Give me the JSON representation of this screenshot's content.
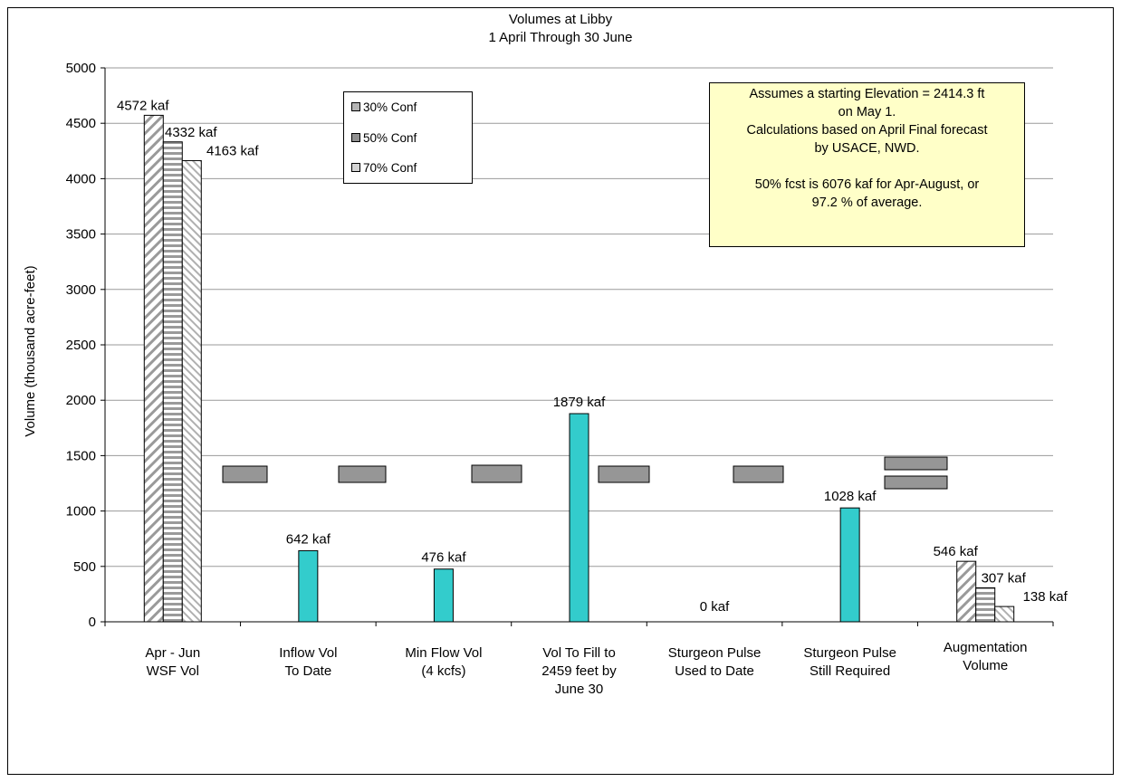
{
  "chart_data": {
    "type": "bar",
    "title": "Volumes at Libby",
    "subtitle": "1 April Through 30 June",
    "ylabel": "Volume (thousand acre-feet)",
    "xlabel": "",
    "ylim": [
      0,
      5000
    ],
    "yticks": [
      "0",
      "500",
      "1000",
      "1500",
      "2000",
      "2500",
      "3000",
      "3500",
      "4000",
      "4500",
      "5000"
    ],
    "grid": true,
    "legend_position": "top-center",
    "categories": [
      [
        "Apr - Jun",
        "WSF Vol"
      ],
      [
        "Inflow Vol",
        "To Date"
      ],
      [
        "Min Flow Vol",
        "(4 kcfs)"
      ],
      [
        "Vol To Fill to",
        "2459 feet by",
        "June 30"
      ],
      [
        "Sturgeon Pulse",
        "Used to Date"
      ],
      [
        "Sturgeon Pulse",
        "Still Required"
      ],
      [
        "Augmentation",
        "Volume"
      ]
    ],
    "series": [
      {
        "name": "30% Conf",
        "pattern": "diagonal",
        "values": [
          4572,
          null,
          null,
          null,
          null,
          null,
          546
        ]
      },
      {
        "name": "50% Conf",
        "pattern": "horizontal",
        "values": [
          4332,
          null,
          null,
          null,
          null,
          null,
          307
        ]
      },
      {
        "name": "70% Conf",
        "pattern": "light-diagonal",
        "values": [
          4163,
          null,
          null,
          null,
          null,
          null,
          138
        ]
      }
    ],
    "single_values": [
      null,
      642,
      476,
      1879,
      0,
      1028,
      null
    ],
    "single_color": "#33cccc",
    "data_labels": [
      [
        "4572 kaf",
        "4332 kaf",
        "4163 kaf"
      ],
      [
        "642 kaf"
      ],
      [
        "476 kaf"
      ],
      [
        "1879 kaf"
      ],
      [
        "0 kaf"
      ],
      [
        "1028 kaf"
      ],
      [
        "546 kaf",
        "307 kaf",
        "138 kaf"
      ]
    ],
    "note": [
      "Assumes a starting Elevation =  2414.3 ft",
      "on May 1.",
      "Calculations based on April Final  forecast",
      "by USACE, NWD.",
      "",
      "50% fcst is 6076 kaf for Apr-August, or",
      "97.2 % of average."
    ]
  }
}
